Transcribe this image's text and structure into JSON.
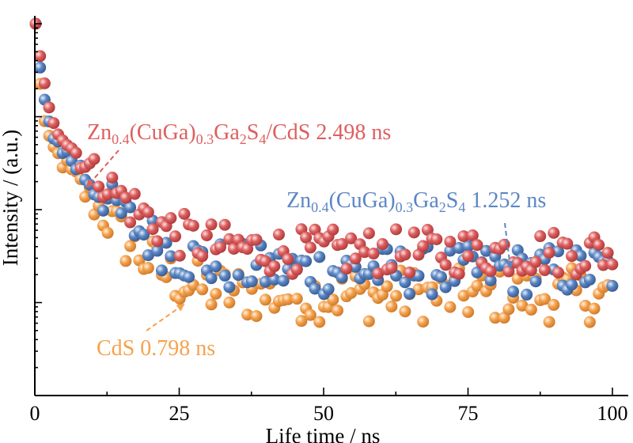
{
  "chart_data": {
    "type": "scatter",
    "xlabel": "Life time / ns",
    "ylabel": "Intensity / (a.u.)",
    "y_scale": "log",
    "xlim": [
      0,
      100
    ],
    "ylim_decades": [
      -4,
      0
    ],
    "x_ticks": [
      0,
      25,
      50,
      75,
      100
    ],
    "x_tick_labels": [
      "0",
      "25",
      "50",
      "75",
      "100"
    ],
    "grid": false,
    "colors": {
      "cds": "#F5A24E",
      "zcgs": "#5B86C4",
      "composite": "#DE5F5F"
    },
    "series": [
      {
        "key": "cds",
        "parts": [
          "CdS"
        ],
        "lifetime": "0.798 ns",
        "curve": {
          "a1": 0.9,
          "t1": 0.45,
          "a2": 0.08,
          "t2": 5.0,
          "floor": 0.0012
        },
        "noise": 0.65
      },
      {
        "key": "zcgs",
        "parts": [
          "Zn",
          "0.4",
          "(CuGa)",
          "0.3",
          "Ga",
          "2",
          "S",
          "4"
        ],
        "lifetime": "1.252 ns",
        "curve": {
          "a1": 0.9,
          "t1": 0.6,
          "a2": 0.1,
          "t2": 5.5,
          "floor": 0.0022
        },
        "noise": 0.6
      },
      {
        "key": "composite",
        "parts": [
          "Zn",
          "0.4",
          "(CuGa)",
          "0.3",
          "Ga",
          "2",
          "S",
          "4",
          "/CdS"
        ],
        "lifetime": "2.498 ns",
        "curve": {
          "a1": 0.88,
          "t1": 0.8,
          "a2": 0.12,
          "t2": 6.0,
          "floor": 0.0035
        },
        "noise": 0.55
      }
    ]
  }
}
